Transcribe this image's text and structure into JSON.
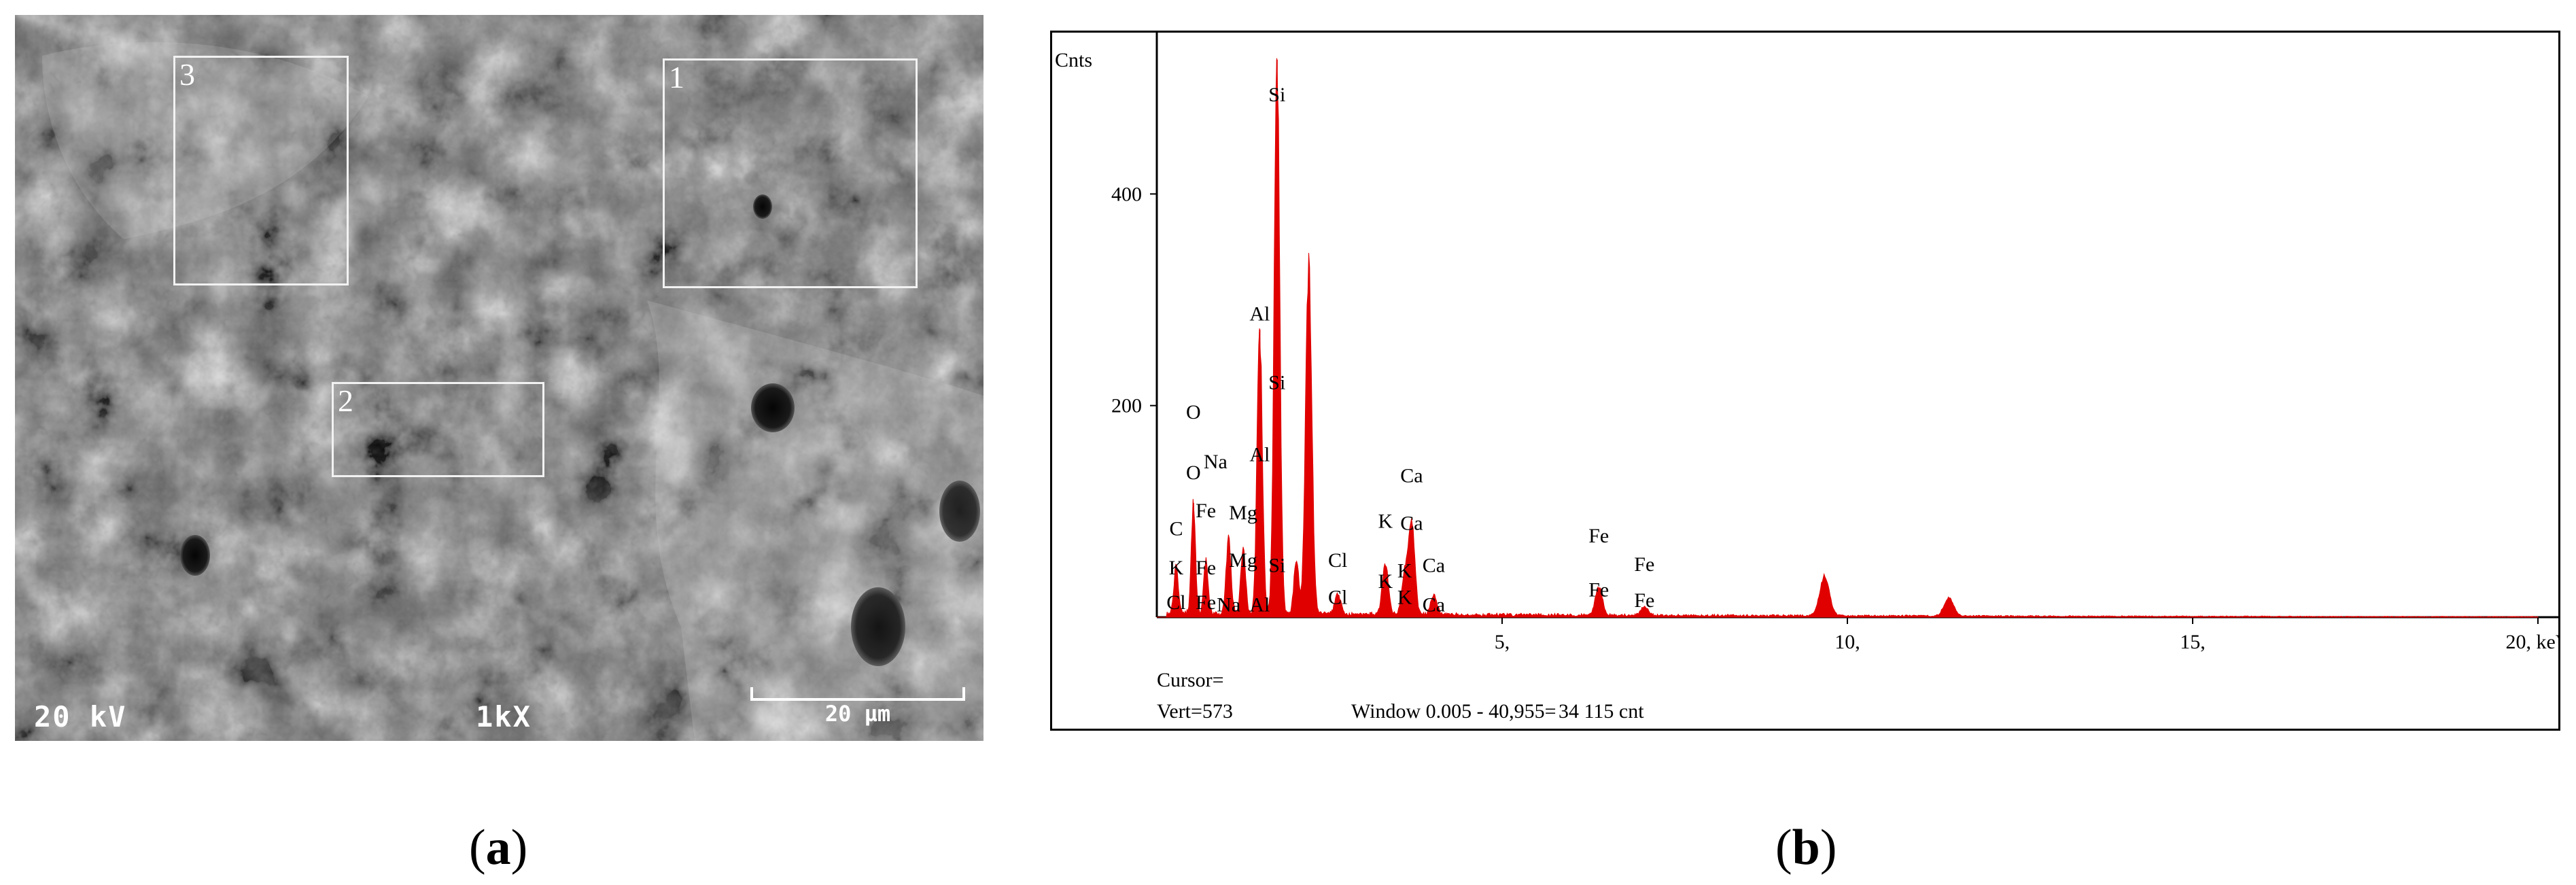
{
  "panels": {
    "a_label": "(a)",
    "a_letter": "a",
    "b_label": "(b)",
    "b_letter": "b"
  },
  "sem": {
    "voltage": "20 kV",
    "magnification": "1kX",
    "scale_bar": "20 µm",
    "regions": [
      {
        "label": "1"
      },
      {
        "label": "2"
      },
      {
        "label": "3"
      }
    ]
  },
  "chart_data": {
    "type": "area",
    "title": "",
    "ylabel": "Cnts",
    "xlabel": "keV",
    "xlim": [
      0,
      20
    ],
    "ylim": [
      0,
      530
    ],
    "x_ticks": [
      {
        "value": 5,
        "label": "5,"
      },
      {
        "value": 10,
        "label": "10,"
      },
      {
        "value": 15,
        "label": "15,"
      },
      {
        "value": 20,
        "label": "20, keV"
      }
    ],
    "y_ticks": [
      {
        "value": 200,
        "label": "200"
      },
      {
        "value": 400,
        "label": "400"
      }
    ],
    "series": [
      {
        "color": "#e00000",
        "background": 4,
        "peaks": [
          {
            "x": 0.28,
            "y": 45,
            "w": 0.03
          },
          {
            "x": 0.53,
            "y": 108,
            "w": 0.03
          },
          {
            "x": 0.71,
            "y": 52,
            "w": 0.03
          },
          {
            "x": 1.04,
            "y": 72,
            "w": 0.035
          },
          {
            "x": 1.25,
            "y": 62,
            "w": 0.035
          },
          {
            "x": 1.49,
            "y": 272,
            "w": 0.038
          },
          {
            "x": 1.74,
            "y": 527,
            "w": 0.04
          },
          {
            "x": 2.02,
            "y": 52,
            "w": 0.035
          },
          {
            "x": 2.2,
            "y": 330,
            "w": 0.045
          },
          {
            "x": 2.62,
            "y": 20,
            "w": 0.04
          },
          {
            "x": 3.31,
            "y": 48,
            "w": 0.045
          },
          {
            "x": 3.59,
            "y": 38,
            "w": 0.045
          },
          {
            "x": 3.69,
            "y": 90,
            "w": 0.045
          },
          {
            "x": 4.01,
            "y": 20,
            "w": 0.045
          },
          {
            "x": 6.4,
            "y": 28,
            "w": 0.05
          },
          {
            "x": 7.06,
            "y": 8,
            "w": 0.05
          },
          {
            "x": 9.67,
            "y": 38,
            "w": 0.07
          },
          {
            "x": 11.47,
            "y": 17,
            "w": 0.07
          }
        ]
      }
    ],
    "annotations": [
      {
        "text": "O",
        "x": 0.53,
        "y": 185
      },
      {
        "text": "O",
        "x": 0.53,
        "y": 128
      },
      {
        "text": "Na",
        "x": 0.85,
        "y": 138
      },
      {
        "text": "Al",
        "x": 1.49,
        "y": 278
      },
      {
        "text": "Si",
        "x": 1.74,
        "y": 485
      },
      {
        "text": "Si",
        "x": 1.74,
        "y": 213
      },
      {
        "text": "Al",
        "x": 1.49,
        "y": 145
      },
      {
        "text": "Mg",
        "x": 1.25,
        "y": 90
      },
      {
        "text": "Fe",
        "x": 0.71,
        "y": 92
      },
      {
        "text": "C",
        "x": 0.28,
        "y": 75
      },
      {
        "text": "K",
        "x": 0.28,
        "y": 38
      },
      {
        "text": "Fe",
        "x": 0.71,
        "y": 38
      },
      {
        "text": "Mg",
        "x": 1.25,
        "y": 45
      },
      {
        "text": "Si",
        "x": 1.74,
        "y": 40
      },
      {
        "text": "Cl",
        "x": 0.28,
        "y": 5
      },
      {
        "text": "Fe",
        "x": 0.71,
        "y": 5
      },
      {
        "text": "Na",
        "x": 1.04,
        "y": 3
      },
      {
        "text": "Al",
        "x": 1.49,
        "y": 3
      },
      {
        "text": "Cl",
        "x": 2.62,
        "y": 45
      },
      {
        "text": "Cl",
        "x": 2.62,
        "y": 10
      },
      {
        "text": "K",
        "x": 3.31,
        "y": 82
      },
      {
        "text": "K",
        "x": 3.31,
        "y": 25
      },
      {
        "text": "K",
        "x": 3.59,
        "y": 35
      },
      {
        "text": "K",
        "x": 3.59,
        "y": 10
      },
      {
        "text": "Ca",
        "x": 3.69,
        "y": 125
      },
      {
        "text": "Ca",
        "x": 3.69,
        "y": 80
      },
      {
        "text": "Ca",
        "x": 4.01,
        "y": 40
      },
      {
        "text": "Ca",
        "x": 4.01,
        "y": 3
      },
      {
        "text": "Fe",
        "x": 6.4,
        "y": 68
      },
      {
        "text": "Fe",
        "x": 6.4,
        "y": 17
      },
      {
        "text": "Fe",
        "x": 7.06,
        "y": 41
      },
      {
        "text": "Fe",
        "x": 7.06,
        "y": 7
      }
    ],
    "footer": {
      "cursor": "Cursor=",
      "vert": "Vert=573",
      "window": "Window 0.005 - 40,955=",
      "count": "34 115 cnt"
    }
  }
}
